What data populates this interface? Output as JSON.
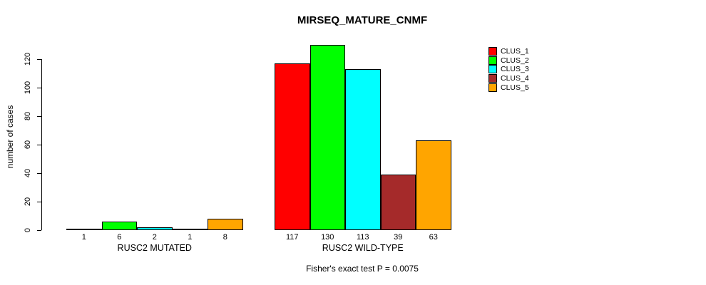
{
  "chart_data": {
    "type": "bar",
    "title": "MIRSEQ_MATURE_CNMF",
    "ylabel": "number of cases",
    "xlabel": "",
    "ylim": [
      0,
      130
    ],
    "yticks": [
      0,
      20,
      40,
      60,
      80,
      100,
      120
    ],
    "categories": [
      "RUSC2 MUTATED",
      "RUSC2 WILD-TYPE"
    ],
    "series": [
      {
        "name": "CLUS_1",
        "color": "#ff0000",
        "values": [
          1,
          117
        ]
      },
      {
        "name": "CLUS_2",
        "color": "#00ff00",
        "values": [
          6,
          130
        ]
      },
      {
        "name": "CLUS_3",
        "color": "#00ffff",
        "values": [
          2,
          113
        ]
      },
      {
        "name": "CLUS_4",
        "color": "#a52a2a",
        "values": [
          1,
          39
        ]
      },
      {
        "name": "CLUS_5",
        "color": "#ffa500",
        "values": [
          8,
          63
        ]
      }
    ],
    "bar_value_labels": true,
    "legend_position": "right",
    "grid": false,
    "annotation": "Fisher's exact test P = 0.0075"
  },
  "colors": {
    "background": "#ffffff",
    "axis": "#000000",
    "text": "#000000"
  }
}
